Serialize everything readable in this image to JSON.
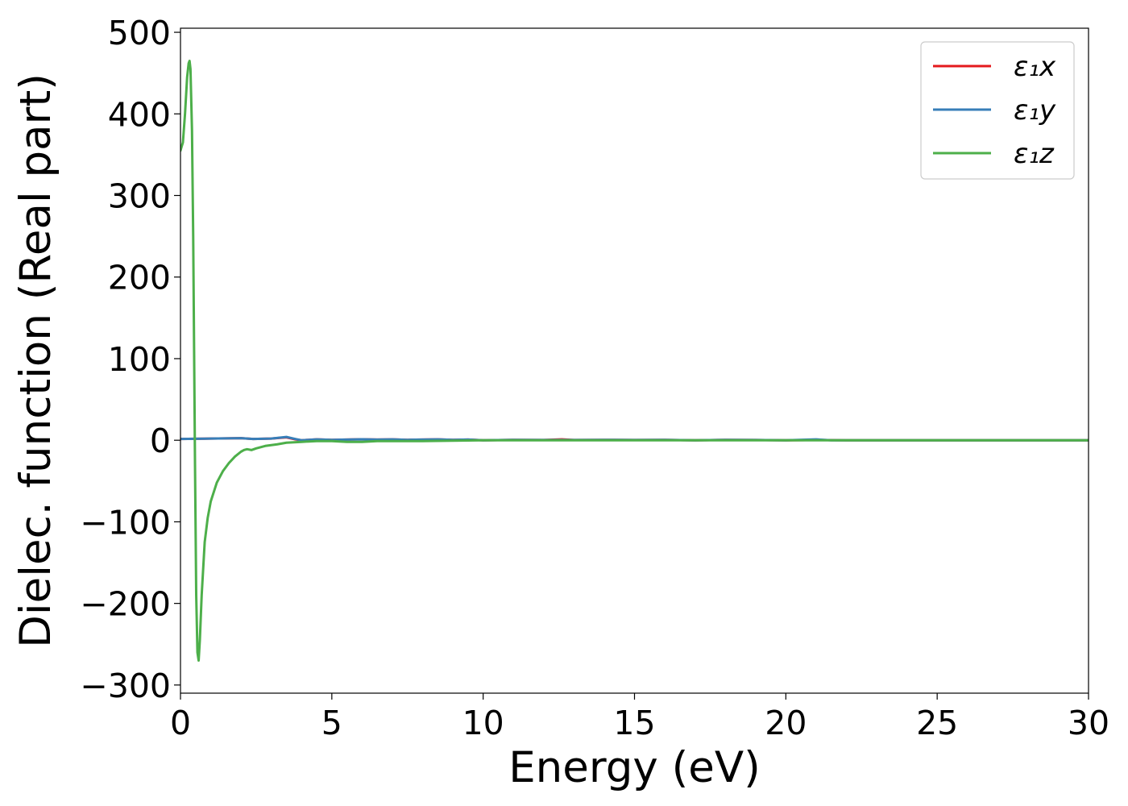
{
  "chart_data": {
    "type": "line",
    "xlabel": "Energy (eV)",
    "ylabel": "Dielec. function (Real part)",
    "xlim": [
      0,
      30
    ],
    "ylim": [
      -310,
      505
    ],
    "xticks": [
      0,
      5,
      10,
      15,
      20,
      25,
      30
    ],
    "xtick_labels": [
      "0",
      "5",
      "10",
      "15",
      "20",
      "25",
      "30"
    ],
    "yticks": [
      500,
      400,
      300,
      200,
      100,
      0,
      -100,
      -200,
      -300
    ],
    "ytick_labels": [
      "500",
      "400",
      "300",
      "200",
      "100",
      "0",
      "−100",
      "−200",
      "−300"
    ],
    "grid": false,
    "legend_position": "top-right",
    "series": [
      {
        "name": "ε₁x",
        "color": "#e41a1c",
        "points": [
          [
            0,
            1.5
          ],
          [
            0.5,
            1.8
          ],
          [
            1,
            2
          ],
          [
            2,
            2.5
          ],
          [
            2.4,
            1.5
          ],
          [
            3,
            2
          ],
          [
            3.5,
            3.5
          ],
          [
            3.8,
            1
          ],
          [
            4,
            0
          ],
          [
            4.5,
            1
          ],
          [
            5,
            0.5
          ],
          [
            5.5,
            0.8
          ],
          [
            6,
            1.2
          ],
          [
            6.5,
            0.8
          ],
          [
            7,
            1
          ],
          [
            7.5,
            0.5
          ],
          [
            8,
            0.8
          ],
          [
            8.5,
            1
          ],
          [
            9,
            0.5
          ],
          [
            9.5,
            0.8
          ],
          [
            10,
            0
          ],
          [
            11,
            0.5
          ],
          [
            12,
            0.3
          ],
          [
            12.6,
            1
          ],
          [
            13,
            0.3
          ],
          [
            14,
            0.5
          ],
          [
            15,
            0.3
          ],
          [
            16,
            0.5
          ],
          [
            17,
            0
          ],
          [
            18,
            0.5
          ],
          [
            19,
            0.3
          ],
          [
            20,
            0
          ],
          [
            21,
            0.3
          ],
          [
            22,
            0
          ],
          [
            23,
            0
          ],
          [
            25,
            0
          ],
          [
            27,
            0
          ],
          [
            30,
            0
          ]
        ]
      },
      {
        "name": "ε₁y",
        "color": "#377eb8",
        "points": [
          [
            0,
            1.5
          ],
          [
            0.5,
            1.8
          ],
          [
            1,
            2
          ],
          [
            2,
            2.5
          ],
          [
            2.4,
            1.5
          ],
          [
            3,
            2
          ],
          [
            3.5,
            4
          ],
          [
            3.8,
            1.5
          ],
          [
            4,
            0
          ],
          [
            4.5,
            1
          ],
          [
            5,
            0.5
          ],
          [
            5.5,
            0.8
          ],
          [
            6,
            1.2
          ],
          [
            6.5,
            0.8
          ],
          [
            7,
            1
          ],
          [
            7.5,
            0.5
          ],
          [
            8,
            0.8
          ],
          [
            8.5,
            1
          ],
          [
            9,
            0.5
          ],
          [
            9.5,
            0.8
          ],
          [
            10,
            0
          ],
          [
            11,
            0.5
          ],
          [
            12,
            0.3
          ],
          [
            13,
            0.3
          ],
          [
            14,
            0.5
          ],
          [
            15,
            0.3
          ],
          [
            16,
            0.5
          ],
          [
            17,
            0
          ],
          [
            18,
            0.5
          ],
          [
            19,
            0.3
          ],
          [
            20,
            0
          ],
          [
            21,
            1
          ],
          [
            21.5,
            0
          ],
          [
            22,
            0
          ],
          [
            23,
            0
          ],
          [
            25,
            0
          ],
          [
            27,
            0
          ],
          [
            30,
            0
          ]
        ]
      },
      {
        "name": "ε₁z",
        "color": "#4daf4a",
        "points": [
          [
            0,
            355
          ],
          [
            0.08,
            365
          ],
          [
            0.15,
            400
          ],
          [
            0.22,
            445
          ],
          [
            0.27,
            462
          ],
          [
            0.3,
            465
          ],
          [
            0.33,
            455
          ],
          [
            0.38,
            380
          ],
          [
            0.42,
            250
          ],
          [
            0.45,
            110
          ],
          [
            0.48,
            -30
          ],
          [
            0.52,
            -190
          ],
          [
            0.56,
            -260
          ],
          [
            0.6,
            -270
          ],
          [
            0.64,
            -245
          ],
          [
            0.7,
            -190
          ],
          [
            0.8,
            -125
          ],
          [
            0.9,
            -95
          ],
          [
            1,
            -75
          ],
          [
            1.2,
            -52
          ],
          [
            1.4,
            -38
          ],
          [
            1.6,
            -28
          ],
          [
            1.8,
            -20
          ],
          [
            2,
            -14
          ],
          [
            2.1,
            -12
          ],
          [
            2.2,
            -11
          ],
          [
            2.35,
            -12
          ],
          [
            2.5,
            -10
          ],
          [
            2.8,
            -7
          ],
          [
            3.2,
            -5
          ],
          [
            3.5,
            -3
          ],
          [
            4,
            -2
          ],
          [
            4.5,
            -1
          ],
          [
            5,
            -1
          ],
          [
            5.5,
            -2
          ],
          [
            6,
            -2
          ],
          [
            6.5,
            -1
          ],
          [
            7,
            -1
          ],
          [
            8,
            -1
          ],
          [
            9,
            -0.5
          ],
          [
            10,
            0
          ],
          [
            12,
            0
          ],
          [
            14,
            0
          ],
          [
            16,
            0
          ],
          [
            18,
            0
          ],
          [
            20,
            0
          ],
          [
            22,
            0
          ],
          [
            25,
            0
          ],
          [
            27,
            0
          ],
          [
            30,
            0
          ]
        ]
      }
    ]
  }
}
